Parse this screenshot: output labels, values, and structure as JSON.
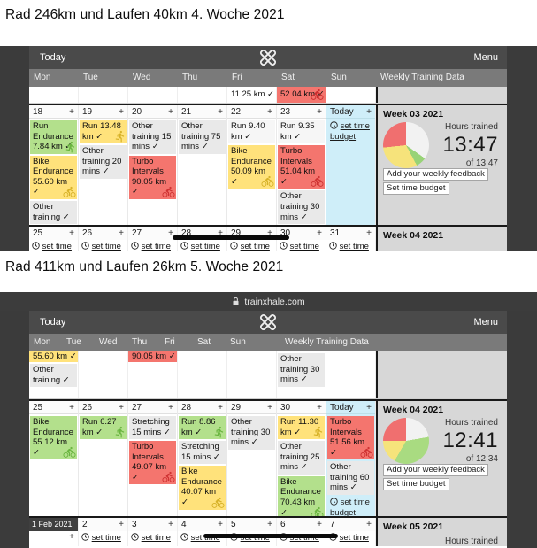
{
  "page": {
    "heading_week4": "Rad 246km und Laufen 40km 4. Woche 2021",
    "heading_week5": "Rad 411km und Laufen 26km 5. Woche 2021"
  },
  "browser": {
    "url": "trainxhale.com"
  },
  "appbar": {
    "today": "Today",
    "menu": "Menu"
  },
  "calendar": {
    "day_names": [
      "Mon",
      "Tue",
      "Wed",
      "Thu",
      "Fri",
      "Sat",
      "Sun"
    ],
    "weekly_header": "Weekly Training Data",
    "set_time_budget": "set time budget",
    "set_time": "set time",
    "plus": "+",
    "check": "✓"
  },
  "colors": {
    "green": "#b3e08c",
    "yellow": "#ffe27b",
    "red": "#f4756e",
    "gray": "#e9e9e9",
    "plain": "#f6f6f6",
    "blue": "#cfeef9",
    "icon_green": "#64b23a",
    "icon_yellow": "#d4ae23",
    "icon_red": "#cc2e2e",
    "icon_plain": "#bbbbbb"
  },
  "shot1": {
    "spill_cells": [
      {
        "col": 4,
        "text": "11.25 km ✓",
        "type": "plain"
      },
      {
        "col": 5,
        "text": "52.04 km ✓",
        "type": "red",
        "icon": "bike"
      }
    ],
    "week": {
      "days": [
        {
          "num": "18",
          "events": [
            {
              "title": "Run Endurance",
              "value": "7.84 km",
              "type": "green",
              "icon": "run"
            },
            {
              "title": "Bike Endurance",
              "value": "55.60 km",
              "type": "yellow",
              "icon": "bike"
            },
            {
              "title": "Other training",
              "value": "",
              "type": "gray"
            }
          ]
        },
        {
          "num": "19",
          "events": [
            {
              "title": "Run",
              "value": "13.48 km",
              "type": "yellow",
              "icon": "run"
            },
            {
              "title": "Other training",
              "value": "20 mins",
              "type": "gray"
            }
          ]
        },
        {
          "num": "20",
          "events": [
            {
              "title": "Other training",
              "value": "15 mins",
              "type": "gray"
            },
            {
              "title": "Turbo Intervals",
              "value": "90.05 km",
              "type": "red",
              "icon": "bike"
            }
          ]
        },
        {
          "num": "21",
          "events": [
            {
              "title": "Other training",
              "value": "75 mins",
              "type": "gray"
            }
          ]
        },
        {
          "num": "22",
          "events": [
            {
              "title": "Run",
              "value": "9.40 km",
              "type": "plain"
            },
            {
              "title": "Bike Endurance",
              "value": "50.09 km",
              "type": "yellow",
              "icon": "bike"
            }
          ]
        },
        {
          "num": "23",
          "events": [
            {
              "title": "Run",
              "value": "9.35 km",
              "type": "plain"
            },
            {
              "title": "Turbo Intervals",
              "value": "51.04 km",
              "type": "red",
              "icon": "bike"
            },
            {
              "title": "Other training",
              "value": "30 mins",
              "type": "gray"
            }
          ]
        },
        {
          "num": "Today",
          "today": true,
          "set_budget": true,
          "events": []
        }
      ],
      "panel": {
        "title": "Week 03 2021",
        "hours_label": "Hours trained",
        "hours": "13:47",
        "of": "of 13:47",
        "buttons": [
          "Add your weekly feedback",
          "Set time budget"
        ],
        "pie": [
          [
            "#f2f2f2",
            125
          ],
          [
            "#98d377",
            27
          ],
          [
            "#f6e37b",
            112
          ],
          [
            "#f06f6f",
            96
          ]
        ]
      }
    },
    "next_strip": {
      "cells": [
        "25",
        "26",
        "27",
        "28",
        "29",
        "30",
        "31"
      ],
      "panel_title": "Week 04 2021"
    }
  },
  "shot2": {
    "spill_cells": [
      {
        "col": 0,
        "remnant": {
          "text": "55.60 km ✓",
          "type": "yellow"
        },
        "cards": [
          {
            "title": "Other training",
            "value": "",
            "type": "gray"
          }
        ]
      },
      {
        "col": 2,
        "remnant": {
          "text": "90.05 km ✓",
          "type": "red"
        }
      },
      {
        "col": 5,
        "cards": [
          {
            "title": "Other training",
            "value": "30 mins",
            "type": "gray"
          }
        ]
      }
    ],
    "week": {
      "days": [
        {
          "num": "25",
          "events": [
            {
              "title": "Bike Endurance",
              "value": "55.12 km",
              "type": "green",
              "icon": "bike"
            }
          ]
        },
        {
          "num": "26",
          "events": [
            {
              "title": "Run",
              "value": "6.27 km",
              "type": "green",
              "icon": "run"
            }
          ]
        },
        {
          "num": "27",
          "events": [
            {
              "title": "Stretching",
              "value": "15 mins",
              "type": "gray"
            },
            {
              "title": "Turbo Intervals",
              "value": "49.07 km",
              "type": "red",
              "icon": "bike"
            }
          ]
        },
        {
          "num": "28",
          "events": [
            {
              "title": "Run",
              "value": "8.86 km",
              "type": "green",
              "icon": "run"
            },
            {
              "title": "Stretching",
              "value": "15 mins",
              "type": "gray"
            },
            {
              "title": "Bike Endurance",
              "value": "40.07 km",
              "type": "yellow",
              "icon": "bike"
            }
          ]
        },
        {
          "num": "29",
          "events": [
            {
              "title": "Other training",
              "value": "30 mins",
              "type": "gray"
            }
          ]
        },
        {
          "num": "30",
          "events": [
            {
              "title": "Run",
              "value": "11.30 km",
              "type": "yellow",
              "icon": "run"
            },
            {
              "title": "Other training",
              "value": "25 mins",
              "type": "gray"
            },
            {
              "title": "Bike Endurance",
              "value": "70.43 km",
              "type": "green",
              "icon": "bike"
            }
          ]
        },
        {
          "num": "Today",
          "today": true,
          "set_budget": true,
          "events": [
            {
              "title": "Turbo Intervals",
              "value": "51.56 km",
              "type": "red",
              "icon": "bike"
            },
            {
              "title": "Other training",
              "value": "60 mins",
              "type": "gray"
            }
          ]
        }
      ],
      "panel": {
        "title": "Week 04 2021",
        "hours_label": "Hours trained",
        "hours": "12:41",
        "of": "of 12:34",
        "buttons": [
          "Add your weekly feedback",
          "Set time budget"
        ],
        "pie": [
          [
            "#f2f2f2",
            80
          ],
          [
            "#a9db81",
            130
          ],
          [
            "#f6e37b",
            60
          ],
          [
            "#f06f6f",
            90
          ]
        ]
      }
    },
    "next_strip": {
      "cells": [
        "1 Feb 2021",
        "2",
        "3",
        "4",
        "5",
        "6",
        "7"
      ],
      "panel_title": "Week 05 2021",
      "hours_label": "Hours trained",
      "date_badge": true
    }
  }
}
